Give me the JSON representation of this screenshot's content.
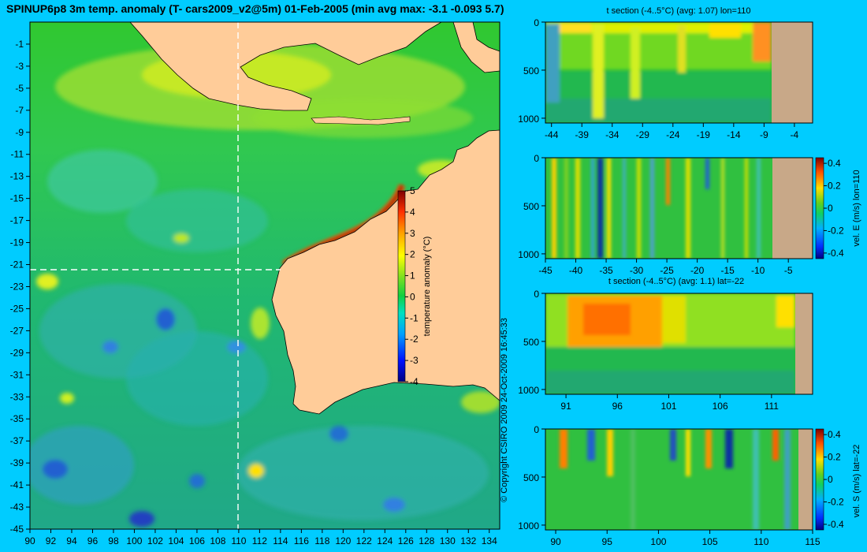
{
  "title": "SPINUP6p8 3m temp. anomaly (T- cars2009_v2@5m) 01-Feb-2005 (min avg max: -3.1 -0.093 5.7)",
  "copyright": "© Copyright CSIRO 2009   24-Oct-2009 16:45:33",
  "colors": {
    "background": "#00ccff",
    "land": "#ffcc99",
    "deep_land": "#c8a888",
    "ocean_green": "#22c22a"
  },
  "chart_data": [
    {
      "type": "heatmap",
      "name": "map",
      "x_ticks": [
        90,
        92,
        94,
        96,
        98,
        100,
        102,
        104,
        106,
        108,
        110,
        112,
        114,
        116,
        118,
        120,
        122,
        124,
        126,
        128,
        130,
        132,
        134
      ],
      "y_ticks": [
        -1,
        -3,
        -5,
        -7,
        -9,
        -11,
        -13,
        -15,
        -17,
        -19,
        -21,
        -23,
        -25,
        -27,
        -29,
        -31,
        -33,
        -35,
        -37,
        -39,
        -41,
        -43,
        -45
      ],
      "xlim": [
        90,
        135
      ],
      "ylim": [
        -45,
        1
      ],
      "section_lon": 110,
      "section_lat": -22,
      "colorbar": {
        "label": "temperature anomaly (°C)",
        "ticks": [
          5,
          4,
          3,
          2,
          1,
          0,
          -1,
          -2,
          -3,
          -4
        ],
        "range": [
          -4,
          5
        ]
      }
    },
    {
      "type": "heatmap",
      "name": "panel1",
      "title": "t section (-4..5°C) (avg: 1.07) lon=110",
      "x_ticks": [
        -44,
        -39,
        -34,
        -29,
        -24,
        -19,
        -14,
        -9,
        -4
      ],
      "y_ticks": [
        0,
        500,
        1000
      ],
      "xlim": [
        -45,
        -1
      ],
      "ylim": [
        1050,
        0
      ]
    },
    {
      "type": "heatmap",
      "name": "panel2",
      "title": "",
      "x_ticks": [
        -45,
        -40,
        -35,
        -30,
        -25,
        -20,
        -15,
        -10,
        -5
      ],
      "y_ticks": [
        0,
        500,
        1000
      ],
      "xlim": [
        -45,
        -1
      ],
      "ylim": [
        1050,
        0
      ],
      "colorbar": {
        "label": "vel. E (m/s) lon=110",
        "ticks": [
          "0.4",
          "0.2",
          "0",
          "-0.2",
          "-0.4"
        ],
        "range": [
          -0.45,
          0.45
        ]
      }
    },
    {
      "type": "heatmap",
      "name": "panel3",
      "title": "t section (-4..5°C) (avg: 1.1) lat=-22",
      "x_ticks": [
        91,
        96,
        101,
        106,
        111
      ],
      "y_ticks": [
        0,
        500,
        1000
      ],
      "xlim": [
        89,
        115
      ],
      "ylim": [
        1050,
        0
      ]
    },
    {
      "type": "heatmap",
      "name": "panel4",
      "title": "",
      "x_ticks": [
        90,
        95,
        100,
        105,
        110,
        115
      ],
      "y_ticks": [
        0,
        500,
        1000
      ],
      "xlim": [
        89,
        115
      ],
      "ylim": [
        1050,
        0
      ],
      "colorbar": {
        "label": "vel. S (m/s) lat=-22",
        "ticks": [
          "0.4",
          "0.2",
          "0",
          "-0.2",
          "-0.4"
        ],
        "range": [
          -0.45,
          0.45
        ]
      }
    }
  ]
}
